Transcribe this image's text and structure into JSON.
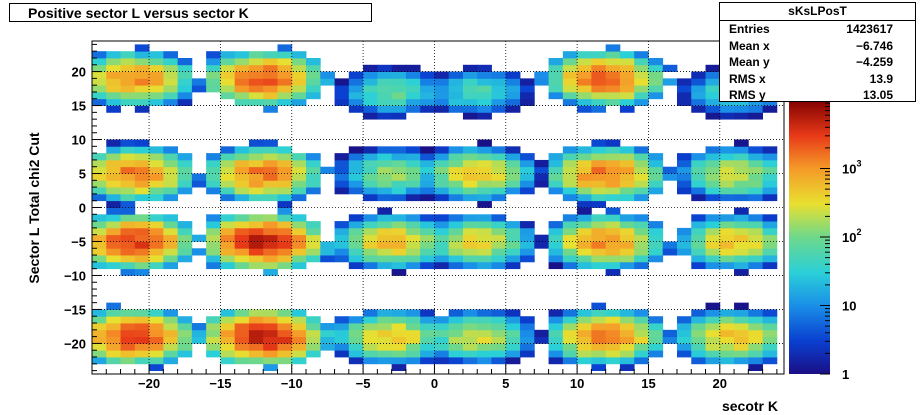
{
  "title": "Positive sector L versus sector K",
  "stats": {
    "name": "sKsLPosT",
    "rows": [
      {
        "key": "Entries",
        "value": "1423617"
      },
      {
        "key": "Mean x",
        "value": "−6.746"
      },
      {
        "key": "Mean y",
        "value": "−4.259"
      },
      {
        "key": "RMS x",
        "value": "13.9"
      },
      {
        "key": "RMS y",
        "value": "13.05"
      }
    ]
  },
  "chart_data": {
    "type": "heatmap",
    "title": "Positive sector L versus sector K",
    "xlabel": "secotr K",
    "ylabel": "Sector L  Total chi2 Cut",
    "xlim": [
      -24,
      24.5
    ],
    "ylim": [
      -24.5,
      24.5
    ],
    "bin_width": 1,
    "xticks": [
      -20,
      -15,
      -10,
      -5,
      0,
      5,
      10,
      15,
      20
    ],
    "yticks": [
      -20,
      -15,
      -10,
      -5,
      0,
      5,
      10,
      15,
      20
    ],
    "xtick_labels": [
      "−20",
      "−15",
      "−10",
      "−5",
      "0",
      "5",
      "10",
      "15",
      "20"
    ],
    "ytick_labels": [
      "−20",
      "−15",
      "−10",
      "−5",
      "0",
      "5",
      "10",
      "15",
      "20"
    ],
    "grid": true,
    "z_scale": "log",
    "zlim": [
      1,
      10000
    ],
    "colorbar_ticks": [
      1,
      10,
      100,
      1000
    ],
    "colorbar_labels": [
      "1",
      "10",
      "10^2",
      "10^3"
    ],
    "clusters": [
      {
        "x": -21,
        "y": 19,
        "peak": 1200
      },
      {
        "x": -12,
        "y": 19,
        "peak": 2500
      },
      {
        "x": -3,
        "y": 17,
        "peak": 80
      },
      {
        "x": 3,
        "y": 17,
        "peak": 60
      },
      {
        "x": 12,
        "y": 19,
        "peak": 2000
      },
      {
        "x": 21,
        "y": 17,
        "peak": 60
      },
      {
        "x": -21,
        "y": 5,
        "peak": 1500
      },
      {
        "x": -12,
        "y": 5,
        "peak": 1500
      },
      {
        "x": -3,
        "y": 5,
        "peak": 150
      },
      {
        "x": 3,
        "y": 5,
        "peak": 500
      },
      {
        "x": 12,
        "y": 5,
        "peak": 1500
      },
      {
        "x": 21,
        "y": 5,
        "peak": 300
      },
      {
        "x": -21,
        "y": -5,
        "peak": 3000
      },
      {
        "x": -12,
        "y": -5,
        "peak": 5000
      },
      {
        "x": -3,
        "y": -5,
        "peak": 600
      },
      {
        "x": 3,
        "y": -5,
        "peak": 400
      },
      {
        "x": 12,
        "y": -5,
        "peak": 1200
      },
      {
        "x": 21,
        "y": -5,
        "peak": 500
      },
      {
        "x": -21,
        "y": -19,
        "peak": 3000
      },
      {
        "x": -12,
        "y": -19,
        "peak": 5000
      },
      {
        "x": -3,
        "y": -19,
        "peak": 500
      },
      {
        "x": 3,
        "y": -19,
        "peak": 300
      },
      {
        "x": 12,
        "y": -19,
        "peak": 1500
      },
      {
        "x": 21,
        "y": -19,
        "peak": 600
      }
    ]
  }
}
